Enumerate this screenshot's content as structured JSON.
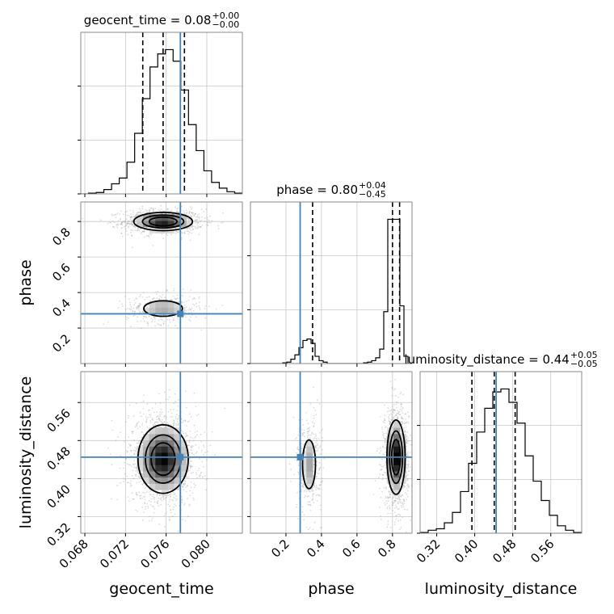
{
  "chart_data": {
    "type": "corner",
    "parameters": [
      "geocent_time",
      "phase",
      "luminosity_distance"
    ],
    "truths": {
      "geocent_time": 0.0774,
      "phase": 0.28,
      "luminosity_distance": 0.445
    },
    "titles": [
      {
        "param": "geocent_time",
        "label": "geocent_time = 0.08",
        "sup": "+0.00",
        "sub": "−0.00"
      },
      {
        "param": "phase",
        "label": "phase = 0.80",
        "sup": "+0.04",
        "sub": "−0.45"
      },
      {
        "param": "luminosity_distance",
        "label": "luminosity_distance = 0.44",
        "sup": "+0.05",
        "sub": "−0.05"
      }
    ],
    "ranges": {
      "geocent_time": [
        0.0676,
        0.0835
      ],
      "phase": [
        0.0,
        0.91
      ],
      "luminosity_distance": [
        0.285,
        0.625
      ]
    },
    "ticks": {
      "geocent_time": [
        "0.068",
        "0.072",
        "0.076",
        "0.080"
      ],
      "phase": [
        "0.2",
        "0.4",
        "0.6",
        "0.8"
      ],
      "luminosity_distance": [
        "0.32",
        "0.40",
        "0.48",
        "0.56"
      ]
    },
    "quantiles": {
      "geocent_time": [
        0.0737,
        0.0757,
        0.0778
      ],
      "phase": [
        0.35,
        0.8,
        0.84
      ],
      "luminosity_distance": [
        0.394,
        0.441,
        0.485
      ]
    },
    "hist_1d": {
      "geocent_time": {
        "edges_start": 0.0676,
        "edges_end": 0.0835,
        "counts": [
          0,
          0.5,
          1,
          3,
          7,
          11,
          22,
          42,
          66,
          88,
          97,
          100,
          92,
          72,
          48,
          30,
          16,
          8,
          4,
          1.5,
          0.5
        ]
      },
      "phase": {
        "edges_start": 0.0,
        "edges_end": 0.91,
        "counts": [
          0,
          0,
          0,
          0,
          0,
          0,
          0,
          0,
          0.5,
          1,
          3,
          6,
          11,
          16,
          17,
          14,
          5,
          2,
          1,
          0,
          0,
          0,
          0,
          0,
          0,
          0,
          0,
          0,
          0.5,
          1,
          2,
          4,
          10,
          36,
          100,
          100,
          100,
          40,
          5,
          0
        ]
      },
      "luminosity_distance": {
        "edges_start": 0.285,
        "edges_end": 0.625,
        "counts": [
          0.5,
          2,
          3,
          7,
          14,
          28,
          47,
          68,
          84,
          95,
          97,
          88,
          74,
          52,
          35,
          22,
          12,
          5,
          2,
          0.5
        ]
      }
    },
    "hist_2d": [
      {
        "x": "geocent_time",
        "y": "phase",
        "modes": [
          {
            "cx": 0.0757,
            "cy": 0.8,
            "sx": 0.0014,
            "sy": 0.025,
            "w": 1.0
          },
          {
            "cx": 0.0757,
            "cy": 0.31,
            "sx": 0.0013,
            "sy": 0.03,
            "w": 0.35
          }
        ]
      },
      {
        "x": "geocent_time",
        "y": "luminosity_distance",
        "modes": [
          {
            "cx": 0.0757,
            "cy": 0.441,
            "sx": 0.0012,
            "sy": 0.035,
            "w": 1.0
          }
        ]
      },
      {
        "x": "phase",
        "y": "luminosity_distance",
        "modes": [
          {
            "cx": 0.82,
            "cy": 0.445,
            "sx": 0.025,
            "sy": 0.038,
            "w": 1.0
          },
          {
            "cx": 0.33,
            "cy": 0.43,
            "sx": 0.025,
            "sy": 0.035,
            "w": 0.35
          }
        ]
      }
    ],
    "truth_color": "#4682b4"
  }
}
